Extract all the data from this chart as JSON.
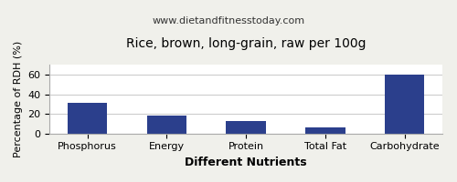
{
  "title": "Rice, brown, long-grain, raw per 100g",
  "subtitle": "www.dietandfitnesstoday.com",
  "xlabel": "Different Nutrients",
  "ylabel": "Percentage of RDH (%)",
  "categories": [
    "Phosphorus",
    "Energy",
    "Protein",
    "Total Fat",
    "Carbohydrate"
  ],
  "values": [
    31,
    18,
    13,
    6,
    60
  ],
  "bar_color": "#2b3f8c",
  "ylim": [
    0,
    70
  ],
  "yticks": [
    0,
    20,
    40,
    60
  ],
  "background_color": "#f0f0eb",
  "plot_bg_color": "#ffffff",
  "title_fontsize": 10,
  "subtitle_fontsize": 8,
  "xlabel_fontsize": 9,
  "ylabel_fontsize": 8,
  "tick_fontsize": 8,
  "border_color": "#aaaaaa"
}
